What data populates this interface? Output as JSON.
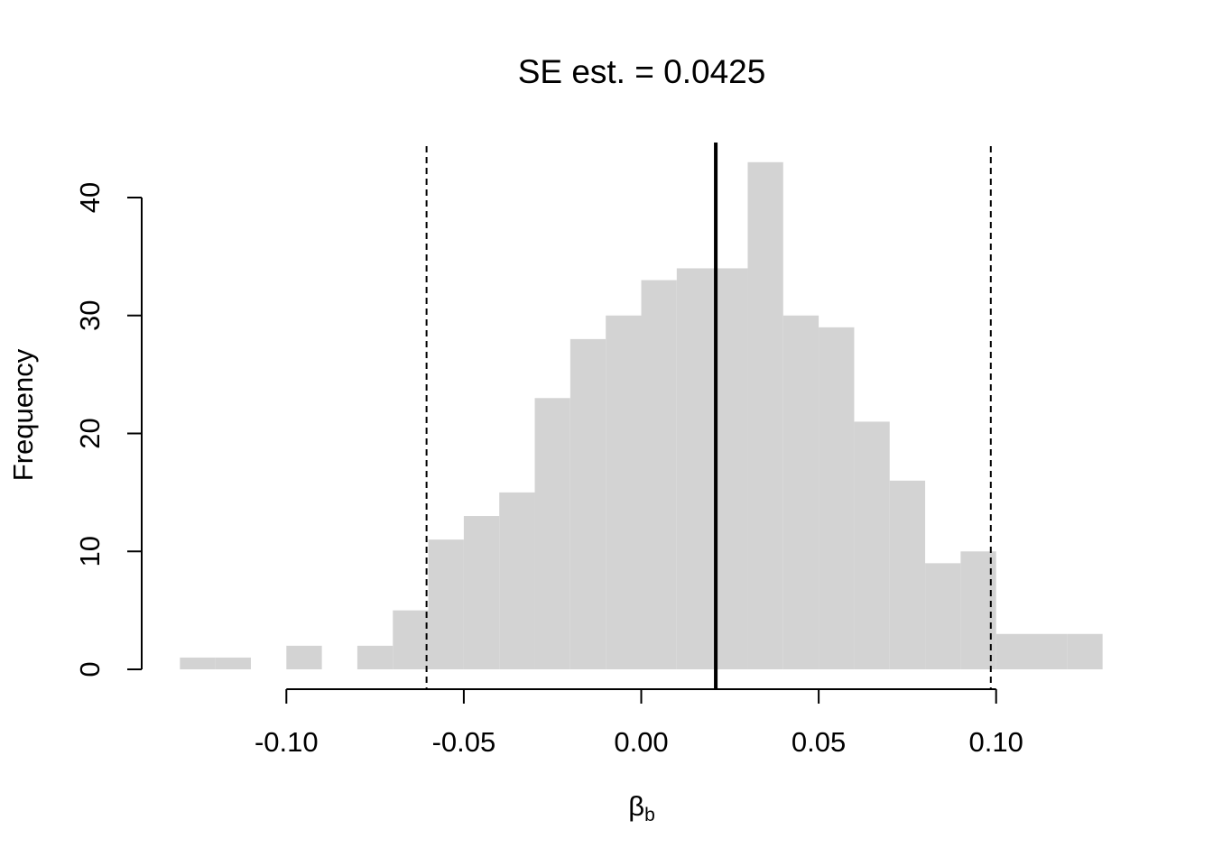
{
  "chart_data": {
    "type": "bar",
    "title": "SE est. = 0.0425",
    "xlabel_main": "β",
    "xlabel_sub": "b",
    "ylabel": "Frequency",
    "bin_width": 0.01,
    "bins": [
      {
        "x0": -0.13,
        "x1": -0.12,
        "count": 1
      },
      {
        "x0": -0.12,
        "x1": -0.11,
        "count": 1
      },
      {
        "x0": -0.11,
        "x1": -0.1,
        "count": 0
      },
      {
        "x0": -0.1,
        "x1": -0.09,
        "count": 2
      },
      {
        "x0": -0.09,
        "x1": -0.08,
        "count": 0
      },
      {
        "x0": -0.08,
        "x1": -0.07,
        "count": 2
      },
      {
        "x0": -0.07,
        "x1": -0.06,
        "count": 5
      },
      {
        "x0": -0.06,
        "x1": -0.05,
        "count": 11
      },
      {
        "x0": -0.05,
        "x1": -0.04,
        "count": 13
      },
      {
        "x0": -0.04,
        "x1": -0.03,
        "count": 15
      },
      {
        "x0": -0.03,
        "x1": -0.02,
        "count": 23
      },
      {
        "x0": -0.02,
        "x1": -0.01,
        "count": 28
      },
      {
        "x0": -0.01,
        "x1": 0.0,
        "count": 30
      },
      {
        "x0": 0.0,
        "x1": 0.01,
        "count": 33
      },
      {
        "x0": 0.01,
        "x1": 0.02,
        "count": 34
      },
      {
        "x0": 0.02,
        "x1": 0.03,
        "count": 34
      },
      {
        "x0": 0.03,
        "x1": 0.04,
        "count": 43
      },
      {
        "x0": 0.04,
        "x1": 0.05,
        "count": 30
      },
      {
        "x0": 0.05,
        "x1": 0.06,
        "count": 29
      },
      {
        "x0": 0.06,
        "x1": 0.07,
        "count": 21
      },
      {
        "x0": 0.07,
        "x1": 0.08,
        "count": 16
      },
      {
        "x0": 0.08,
        "x1": 0.09,
        "count": 9
      },
      {
        "x0": 0.09,
        "x1": 0.1,
        "count": 10
      },
      {
        "x0": 0.1,
        "x1": 0.11,
        "count": 3
      },
      {
        "x0": 0.11,
        "x1": 0.12,
        "count": 3
      },
      {
        "x0": 0.12,
        "x1": 0.13,
        "count": 3
      }
    ],
    "xticks": [
      -0.1,
      -0.05,
      0.0,
      0.05,
      0.1
    ],
    "xtick_labels": [
      "-0.10",
      "-0.05",
      "0.00",
      "0.05",
      "0.10"
    ],
    "yticks": [
      0,
      10,
      20,
      30,
      40
    ],
    "ytick_labels": [
      "0",
      "10",
      "20",
      "30",
      "40"
    ],
    "xlim": [
      -0.13,
      0.13
    ],
    "ylim": [
      0,
      45
    ],
    "estimate_line": 0.021,
    "ci_lines": [
      -0.0605,
      0.0985
    ],
    "bar_color": "#d3d3d3",
    "grid": false
  }
}
